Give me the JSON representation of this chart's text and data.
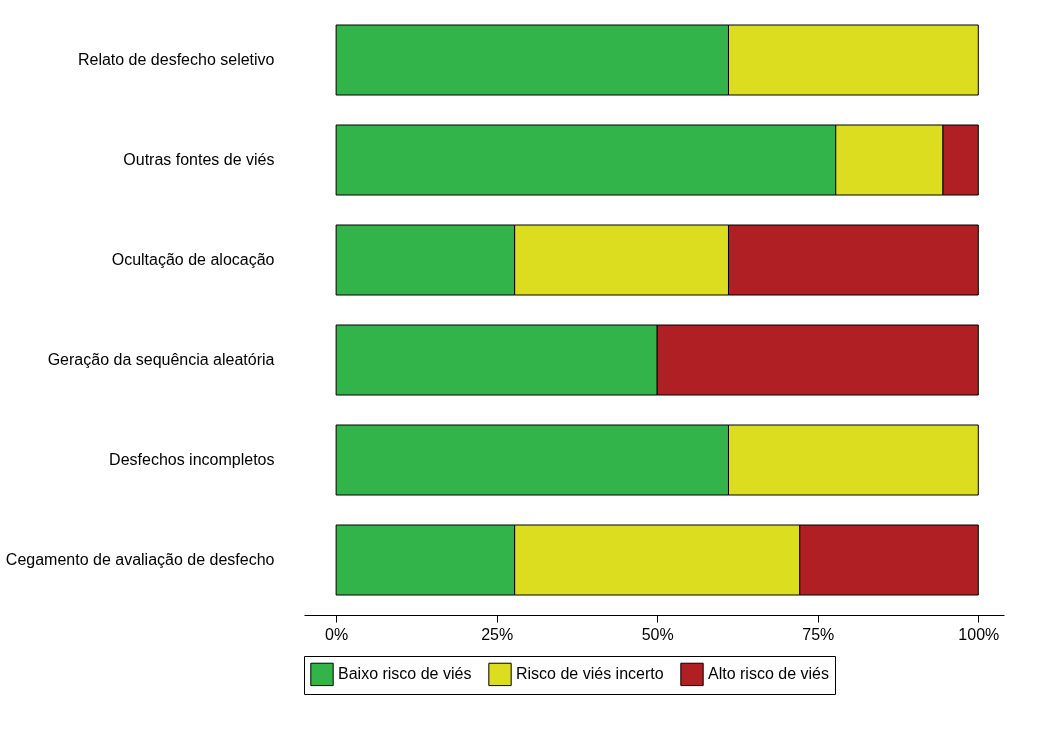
{
  "chart_data": {
    "type": "bar",
    "orientation": "horizontal",
    "stacked": true,
    "categories": [
      "Relato de desfecho seletivo",
      "Outras fontes de viés",
      "Ocultação de alocação",
      "Geração da sequência aleatória",
      "Desfechos incompletos",
      "Cegamento de avaliação de desfecho"
    ],
    "series": [
      {
        "name": "Baixo risco de viés",
        "color": "#33b44a",
        "values": [
          61.1,
          77.8,
          27.8,
          50,
          61.1,
          27.8
        ]
      },
      {
        "name": "Risco de viés incerto",
        "color": "#dddd1f",
        "values": [
          38.9,
          16.7,
          33.3,
          null,
          38.9,
          44.4
        ]
      },
      {
        "name": "Alto risco de viés",
        "color": "#b01f24",
        "values": [
          null,
          5.5,
          38.9,
          50,
          null,
          27.8
        ]
      }
    ],
    "xlim": [
      -5,
      104
    ],
    "xticks": [
      {
        "value": 0,
        "label": "0%"
      },
      {
        "value": 25,
        "label": "25%"
      },
      {
        "value": 50,
        "label": "50%"
      },
      {
        "value": 75,
        "label": "75%"
      },
      {
        "value": 100,
        "label": "100%"
      }
    ],
    "grid": false,
    "legend": "bottom"
  }
}
